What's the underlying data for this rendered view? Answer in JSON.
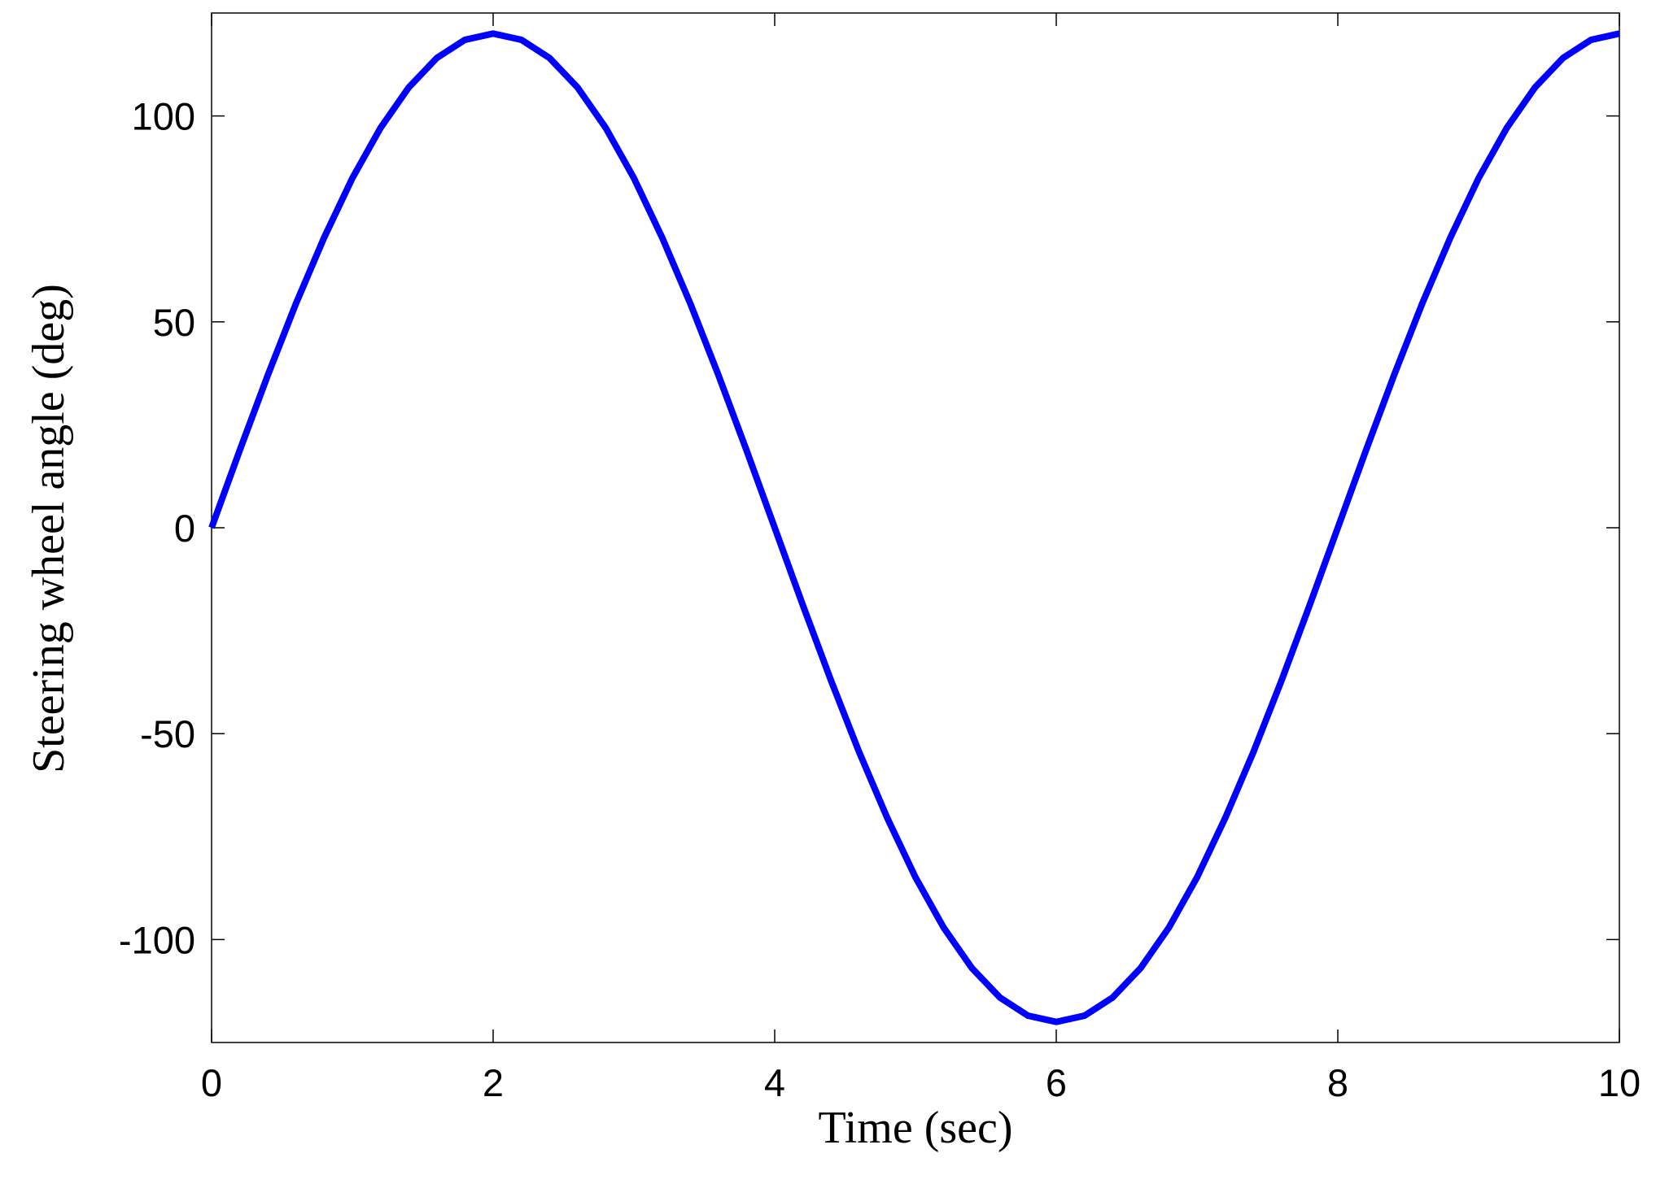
{
  "chart_data": {
    "type": "line",
    "xlabel": "Time (sec)",
    "ylabel": "Steering wheel angle (deg)",
    "x": [
      0,
      0.2,
      0.4,
      0.6,
      0.8,
      1,
      1.2,
      1.4,
      1.6,
      1.8,
      2,
      2.2,
      2.4,
      2.6,
      2.8,
      3,
      3.2,
      3.4,
      3.6,
      3.8,
      4,
      4.2,
      4.4,
      4.6,
      4.8,
      5,
      5.2,
      5.4,
      5.6,
      5.8,
      6,
      6.2,
      6.4,
      6.6,
      6.8,
      7,
      7.2,
      7.4,
      7.6,
      7.8,
      8,
      8.2,
      8.4,
      8.6,
      8.8,
      9,
      9.2,
      9.4,
      9.6,
      9.8,
      10
    ],
    "series": [
      {
        "color": "#0000ff",
        "values": [
          0,
          18.8,
          37.1,
          54.5,
          70.5,
          84.9,
          97.1,
          106.9,
          114.1,
          118.5,
          120,
          118.5,
          114.1,
          106.9,
          97.1,
          84.9,
          70.5,
          54.5,
          37.1,
          18.8,
          0,
          -18.8,
          -37.1,
          -54.5,
          -70.5,
          -84.9,
          -97.1,
          -106.9,
          -114.1,
          -118.5,
          -120,
          -118.5,
          -114.1,
          -106.9,
          -97.1,
          -84.9,
          -70.5,
          -54.5,
          -37.1,
          -18.8,
          0,
          18.8,
          37.1,
          54.5,
          70.5,
          84.9,
          97.1,
          106.9,
          114.1,
          118.5,
          120
        ]
      }
    ],
    "xlim": [
      0,
      10
    ],
    "xticks": [
      0,
      2,
      4,
      6,
      8,
      10
    ],
    "ylim": [
      -125,
      125
    ],
    "yticks": [
      -100,
      -50,
      0,
      50,
      100
    ],
    "grid": false
  }
}
